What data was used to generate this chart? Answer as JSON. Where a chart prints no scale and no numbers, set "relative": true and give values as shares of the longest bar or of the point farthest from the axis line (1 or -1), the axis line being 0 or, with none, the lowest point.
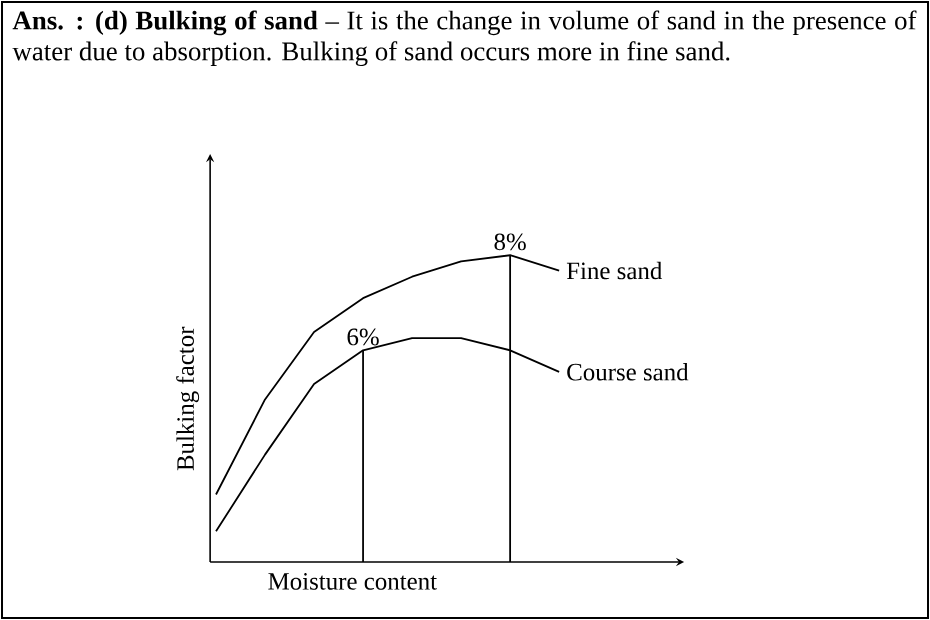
{
  "chart_data": {
    "type": "line",
    "title": "**Ans. : (d) Bulking of sand** – It is the change in volume of sand in the presence of water due to absorption. Bulking of sand occurs more in fine sand.",
    "xlabel": "Moisture content",
    "ylabel": "Bulking factor",
    "relative": true,
    "categories": [
      null,
      null,
      null,
      null,
      null,
      null,
      null,
      null
    ],
    "series": [
      {
        "name": "Fine sand",
        "color": "#000000",
        "values": [
          0.22,
          0.53,
          0.75,
          0.86,
          0.93,
          0.98,
          1.0,
          0.95
        ]
      },
      {
        "name": "Course sand",
        "color": "#000000",
        "values": [
          0.1,
          0.35,
          0.58,
          0.69,
          0.73,
          0.73,
          0.69,
          0.62
        ]
      }
    ],
    "annotations": [
      {
        "text": "6%",
        "y": 0.69
      },
      {
        "text": "8%",
        "y": 1.0
      }
    ]
  }
}
